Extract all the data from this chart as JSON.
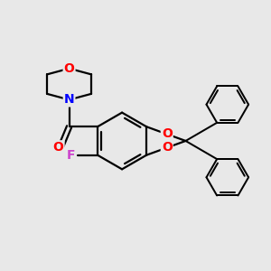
{
  "bg_color": "#e8e8e8",
  "bond_color": "#000000",
  "bond_width": 1.6,
  "atom_colors": {
    "O": "#ff0000",
    "N": "#0000ff",
    "F": "#cc44cc",
    "C": "#000000"
  },
  "font_size": 9.5
}
